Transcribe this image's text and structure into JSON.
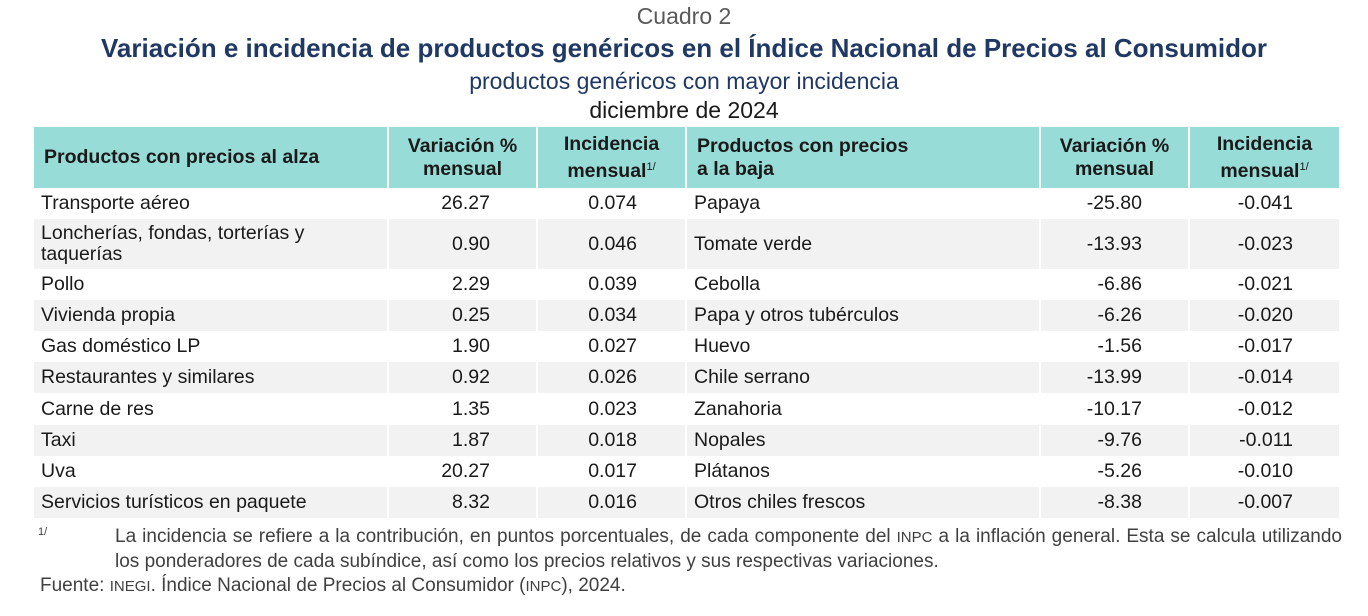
{
  "caption": "Cuadro 2",
  "title": "Variación e incidencia de productos genéricos en el Índice Nacional de Precios al Consumidor",
  "subtitle": "productos genéricos con mayor incidencia",
  "date": "diciembre de 2024",
  "headers": {
    "up_products": "Productos con precios al alza",
    "variation_l1": "Variación %",
    "variation_l2": "mensual",
    "incidence_l1": "Incidencia",
    "incidence_l2": "mensual",
    "footnote_mark": "1/",
    "down_products_l1": "Productos con precios",
    "down_products_l2": "a la baja"
  },
  "rows": [
    {
      "up": "Transporte aéreo",
      "up_var": "26.27",
      "up_inc": "0.074",
      "down": "Papaya",
      "down_var": "-25.80",
      "down_inc": "-0.041"
    },
    {
      "up": "Loncherías, fondas, torterías y taquerías",
      "up_var": "0.90",
      "up_inc": "0.046",
      "down": "Tomate verde",
      "down_var": "-13.93",
      "down_inc": "-0.023"
    },
    {
      "up": "Pollo",
      "up_var": "2.29",
      "up_inc": "0.039",
      "down": "Cebolla",
      "down_var": "-6.86",
      "down_inc": "-0.021"
    },
    {
      "up": "Vivienda propia",
      "up_var": "0.25",
      "up_inc": "0.034",
      "down": "Papa y otros tubérculos",
      "down_var": "-6.26",
      "down_inc": "-0.020"
    },
    {
      "up": "Gas doméstico LP",
      "up_var": "1.90",
      "up_inc": "0.027",
      "down": "Huevo",
      "down_var": "-1.56",
      "down_inc": "-0.017"
    },
    {
      "up": "Restaurantes y similares",
      "up_var": "0.92",
      "up_inc": "0.026",
      "down": "Chile serrano",
      "down_var": "-13.99",
      "down_inc": "-0.014"
    },
    {
      "up": "Carne de res",
      "up_var": "1.35",
      "up_inc": "0.023",
      "down": "Zanahoria",
      "down_var": "-10.17",
      "down_inc": "-0.012"
    },
    {
      "up": "Taxi",
      "up_var": "1.87",
      "up_inc": "0.018",
      "down": "Nopales",
      "down_var": "-9.76",
      "down_inc": "-0.011"
    },
    {
      "up": "Uva",
      "up_var": "20.27",
      "up_inc": "0.017",
      "down": "Plátanos",
      "down_var": "-5.26",
      "down_inc": "-0.010"
    },
    {
      "up": "Servicios turísticos en paquete",
      "up_var": "8.32",
      "up_inc": "0.016",
      "down": "Otros chiles frescos",
      "down_var": "-8.38",
      "down_inc": "-0.007"
    }
  ],
  "footnote": {
    "mark": "1/",
    "text_a": "La incidencia se refiere a la contribución, en puntos porcentuales, de cada componente del ",
    "abbr": "INPC",
    "text_b": " a la inflación general. Esta se calcula utilizando los ponderadores de cada subíndice, así como los precios relativos y sus respectivas variaciones."
  },
  "source": {
    "label": "Fuente: ",
    "org": "INEGI",
    "text_a": ". Índice Nacional de Precios al Consumidor (",
    "abbr": "INPC",
    "text_b": "), 2024."
  }
}
